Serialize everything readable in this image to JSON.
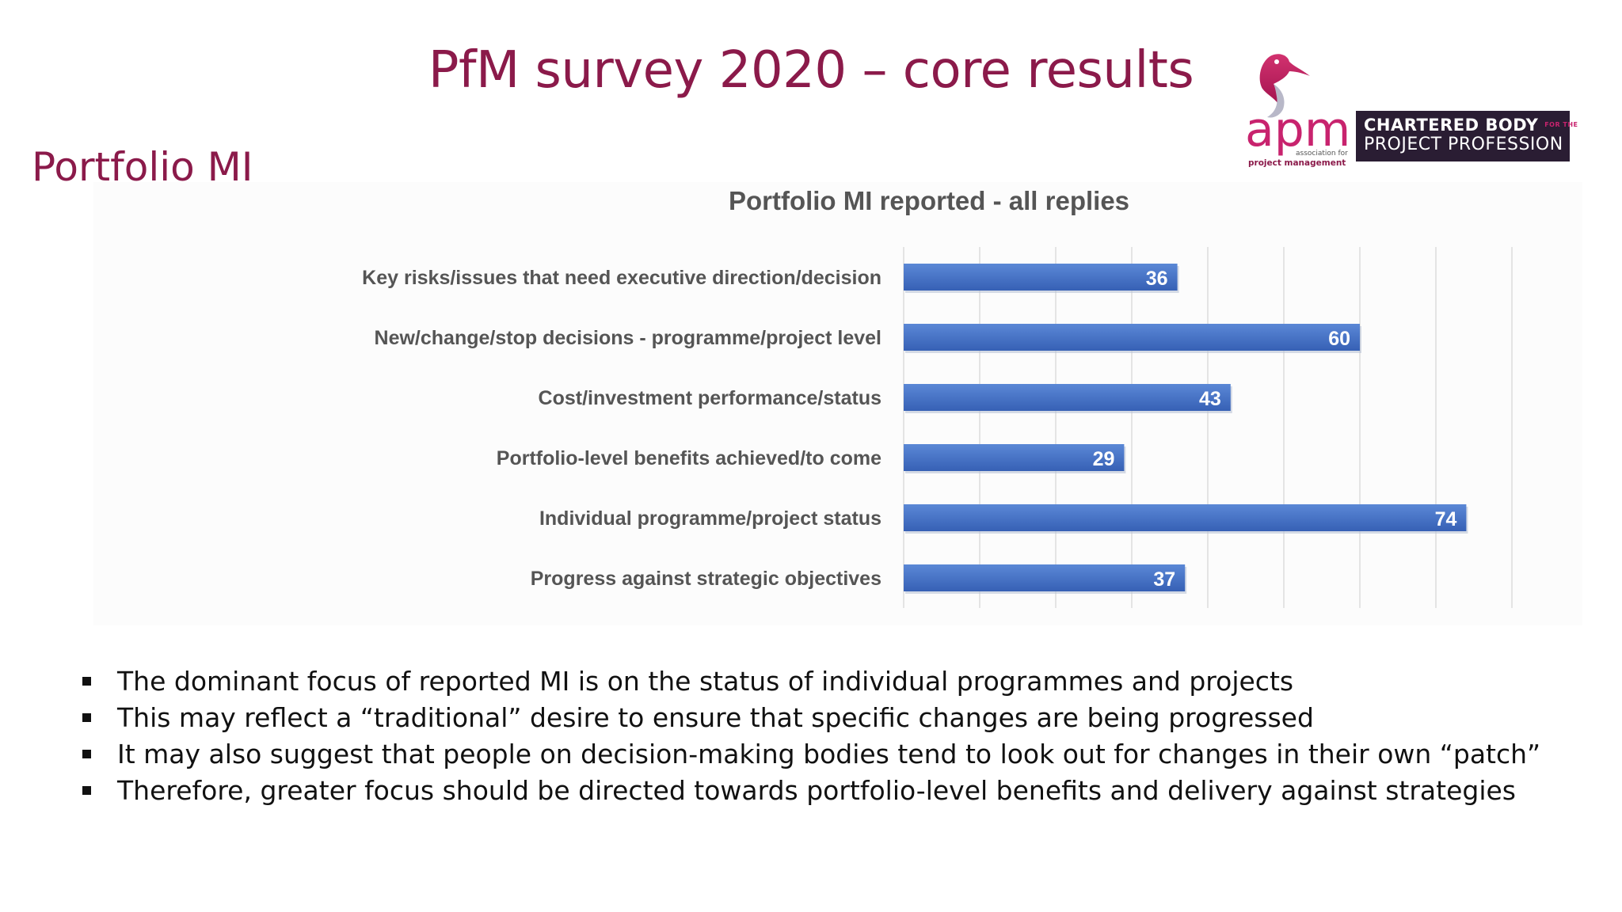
{
  "slide": {
    "title": "PfM survey 2020 – core results",
    "section": "Portfolio MI"
  },
  "logo": {
    "apm_text": "apm",
    "apm_sub1": "association for",
    "apm_sub2": "project management",
    "chartered_line1": "CHARTERED BODY",
    "chartered_small": "FOR THE",
    "chartered_line2": "PROJECT PROFESSION",
    "colors": {
      "magenta": "#c8236e",
      "purple": "#2a1d33",
      "grey": "#b8b8c8"
    }
  },
  "chart_data": {
    "type": "bar",
    "orientation": "horizontal",
    "title": "Portfolio MI reported - all replies",
    "categories": [
      "Key risks/issues that need executive direction/decision",
      "New/change/stop decisions - programme/project level",
      "Cost/investment performance/status",
      "Portfolio-level benefits achieved/to come",
      "Individual programme/project status",
      "Progress against strategic objectives"
    ],
    "values": [
      36,
      60,
      43,
      29,
      74,
      37
    ],
    "xlim": [
      0,
      80
    ],
    "grid": true,
    "data_labels": true,
    "bar_color": "#4472c4"
  },
  "bullets": [
    "The dominant focus of reported MI is on the status of individual programmes and projects",
    "This may reflect a “traditional” desire to ensure that specific changes are being progressed",
    "It may also suggest that people on decision-making bodies tend to look out for changes in their own “patch”",
    "Therefore, greater focus should be directed towards portfolio-level benefits and delivery against strategies"
  ]
}
